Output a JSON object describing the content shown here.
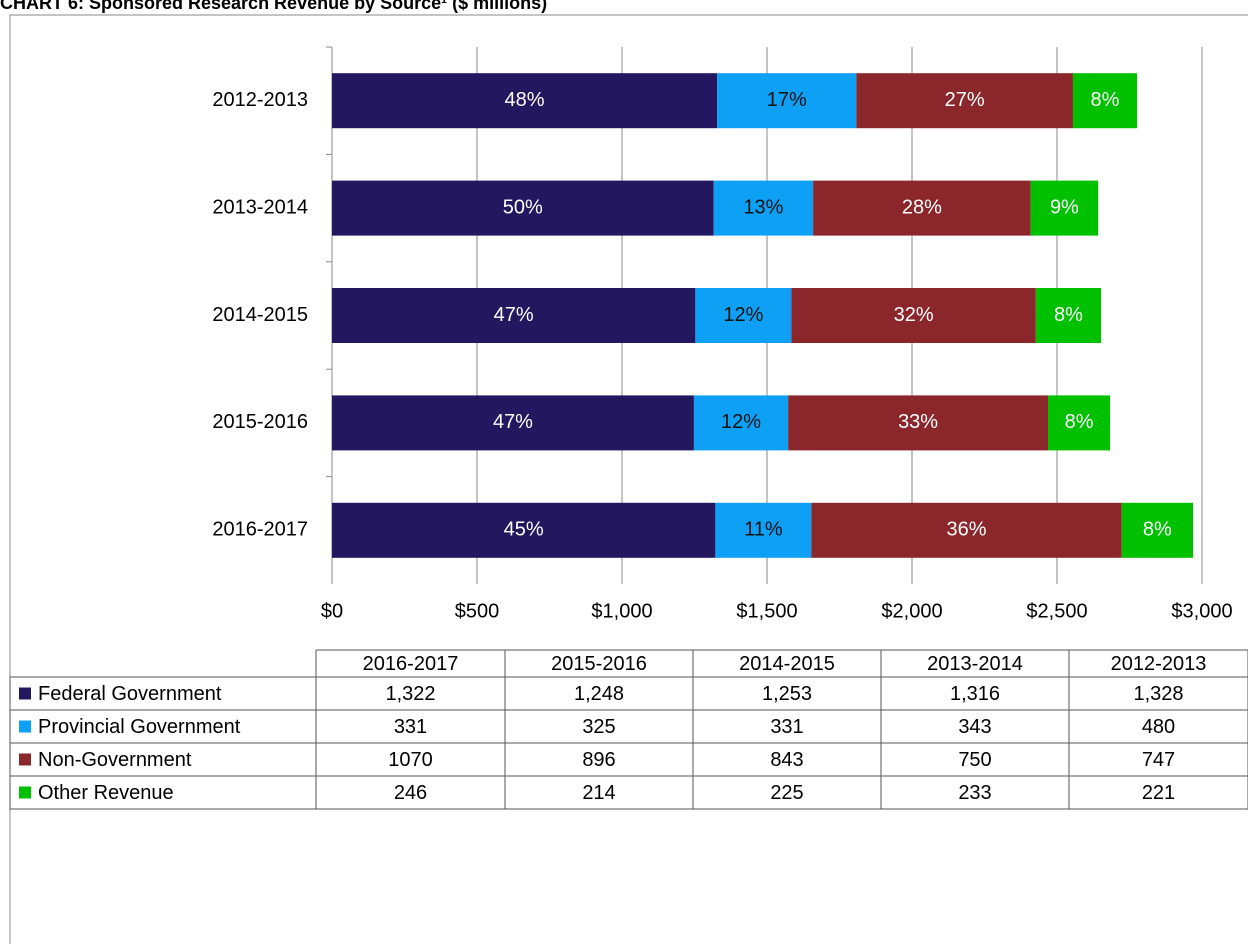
{
  "chart_data": {
    "type": "stacked-bar-horizontal",
    "title": "CHART 6: Sponsored Research Revenue by Source¹ ($ millions)",
    "categories": [
      "2012-2013",
      "2013-2014",
      "2014-2015",
      "2015-2016",
      "2016-2017"
    ],
    "series": [
      {
        "name": "Federal Government",
        "color": "#231760",
        "values": [
          1328,
          1316,
          1253,
          1248,
          1322
        ],
        "value_labels": [
          "1,328",
          "1,316",
          "1,253",
          "1,248",
          "1,322"
        ],
        "share_labels": [
          "48%",
          "50%",
          "47%",
          "47%",
          "45%"
        ]
      },
      {
        "name": "Provincial Government",
        "color": "#0ea0f5",
        "values": [
          480,
          343,
          331,
          325,
          331
        ],
        "share_labels": [
          "17%",
          "13%",
          "12%",
          "12%",
          "11%"
        ]
      },
      {
        "name": "Non-Government",
        "color": "#8b262a",
        "values": [
          747,
          750,
          843,
          896,
          1070
        ],
        "share_labels": [
          "27%",
          "28%",
          "32%",
          "33%",
          "36%"
        ]
      },
      {
        "name": "Other Revenue",
        "color": "#00c000",
        "values": [
          221,
          233,
          225,
          214,
          246
        ],
        "share_labels": [
          "8%",
          "9%",
          "8%",
          "8%",
          "8%"
        ]
      }
    ],
    "xlim": [
      0,
      3000
    ],
    "xticks": [
      {
        "value": 0,
        "label": "$0"
      },
      {
        "value": 500,
        "label": "$500"
      },
      {
        "value": 1000,
        "label": "$1,000"
      },
      {
        "value": 1500,
        "label": "$1,500"
      },
      {
        "value": 2000,
        "label": "$2,000"
      },
      {
        "value": 2500,
        "label": "$2,500"
      },
      {
        "value": 3000,
        "label": "$3,000"
      }
    ],
    "grid": true,
    "data_table": true
  }
}
